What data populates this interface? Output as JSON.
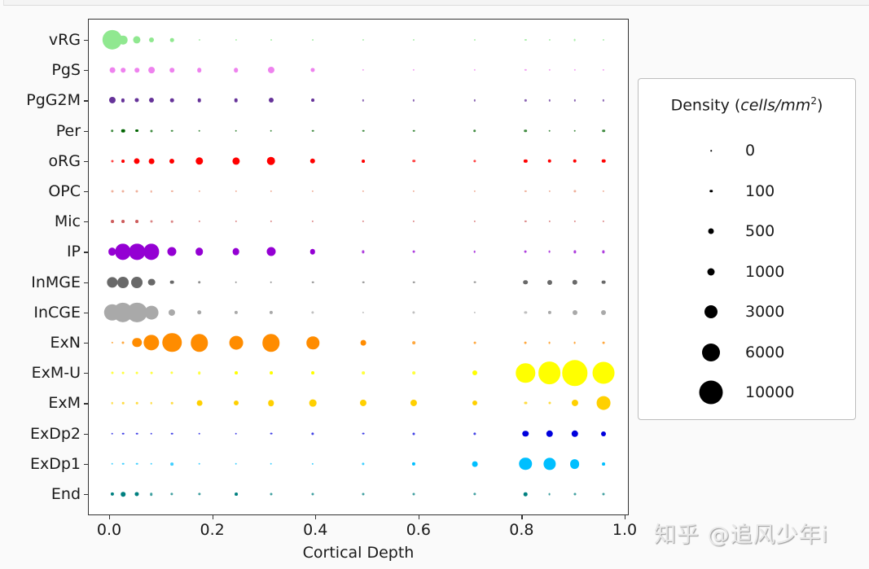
{
  "chart_data": {
    "type": "scatter",
    "subtype": "bubble-dotplot",
    "title": "",
    "xlabel": "Cortical Depth",
    "ylabel": "",
    "xlim": [
      -0.04,
      1.0
    ],
    "xticks": [
      "0.0",
      "0.2",
      "0.4",
      "0.6",
      "0.8",
      "1.0"
    ],
    "grid": false,
    "x": [
      0.006,
      0.027,
      0.054,
      0.082,
      0.122,
      0.175,
      0.246,
      0.314,
      0.395,
      0.493,
      0.591,
      0.709,
      0.808,
      0.854,
      0.903,
      0.959
    ],
    "categories": [
      "vRG",
      "PgS",
      "PgG2M",
      "Per",
      "oRG",
      "OPC",
      "Mic",
      "IP",
      "InMGE",
      "InCGE",
      "ExN",
      "ExM-U",
      "ExM",
      "ExDp2",
      "ExDp1",
      "End"
    ],
    "series": [
      {
        "name": "vRG",
        "color": "#90e890",
        "values": [
          6500,
          1100,
          800,
          300,
          150,
          15,
          15,
          10,
          10,
          15,
          15,
          15,
          15,
          15,
          40,
          15
        ]
      },
      {
        "name": "PgS",
        "color": "#ee82ee",
        "values": [
          400,
          250,
          250,
          550,
          250,
          250,
          250,
          600,
          200,
          20,
          20,
          20,
          20,
          20,
          20,
          20
        ]
      },
      {
        "name": "PgG2M",
        "color": "#663399",
        "values": [
          600,
          120,
          200,
          300,
          150,
          150,
          150,
          300,
          100,
          20,
          20,
          20,
          20,
          20,
          20,
          20
        ]
      },
      {
        "name": "Per",
        "color": "#006400",
        "values": [
          80,
          150,
          100,
          50,
          30,
          30,
          30,
          30,
          30,
          30,
          30,
          80,
          80,
          30,
          30,
          80
        ]
      },
      {
        "name": "oRG",
        "color": "#ff0000",
        "values": [
          50,
          100,
          450,
          400,
          300,
          850,
          800,
          1100,
          350,
          100,
          80,
          60,
          130,
          150,
          150,
          150
        ]
      },
      {
        "name": "OPC",
        "color": "#e9967a",
        "values": [
          50,
          50,
          50,
          30,
          20,
          20,
          20,
          20,
          20,
          20,
          20,
          20,
          20,
          20,
          60,
          20
        ]
      },
      {
        "name": "Mic",
        "color": "#cd5c5c",
        "values": [
          100,
          100,
          100,
          50,
          30,
          20,
          20,
          20,
          20,
          20,
          20,
          20,
          20,
          20,
          20,
          20
        ]
      },
      {
        "name": "IP",
        "color": "#9400d3",
        "values": [
          900,
          4000,
          4000,
          4000,
          1200,
          900,
          700,
          1200,
          350,
          60,
          40,
          30,
          40,
          40,
          60,
          60
        ]
      },
      {
        "name": "InMGE",
        "color": "#696969",
        "values": [
          1800,
          2000,
          2000,
          700,
          160,
          80,
          30,
          30,
          30,
          30,
          30,
          40,
          250,
          300,
          350,
          170
        ]
      },
      {
        "name": "InCGE",
        "color": "#a9a9a9",
        "values": [
          4500,
          6500,
          6500,
          3000,
          600,
          250,
          120,
          120,
          60,
          20,
          60,
          20,
          60,
          120,
          300,
          300
        ]
      },
      {
        "name": "ExN",
        "color": "#ff8c00",
        "values": [
          20,
          50,
          1300,
          4000,
          6000,
          5000,
          3000,
          5000,
          2500,
          400,
          90,
          40,
          40,
          40,
          40,
          40
        ]
      },
      {
        "name": "ExM-U",
        "color": "#ffff00",
        "values": [
          50,
          40,
          40,
          40,
          60,
          80,
          100,
          100,
          100,
          90,
          90,
          300,
          6000,
          8500,
          11000,
          8000
        ]
      },
      {
        "name": "ExM",
        "color": "#ffd000",
        "values": [
          30,
          30,
          30,
          30,
          30,
          400,
          300,
          500,
          700,
          600,
          600,
          300,
          50,
          50,
          600,
          3000
        ]
      },
      {
        "name": "ExDp2",
        "color": "#0000dd",
        "values": [
          30,
          30,
          30,
          30,
          30,
          30,
          30,
          40,
          60,
          40,
          50,
          60,
          500,
          650,
          650,
          300
        ]
      },
      {
        "name": "ExDp1",
        "color": "#00bfff",
        "values": [
          30,
          30,
          30,
          30,
          90,
          30,
          30,
          30,
          20,
          60,
          120,
          400,
          2500,
          2400,
          1400,
          100
        ]
      },
      {
        "name": "End",
        "color": "#008080",
        "values": [
          120,
          250,
          200,
          80,
          60,
          60,
          100,
          50,
          50,
          50,
          50,
          60,
          150,
          40,
          50,
          50
        ]
      }
    ],
    "legend": {
      "title": "Density",
      "title_unit": "cells/mm",
      "title_unit_exp": "2",
      "position": "right",
      "entries": [
        {
          "label": "0",
          "value": 0,
          "size": 1.5
        },
        {
          "label": "100",
          "value": 100,
          "size": 3.5
        },
        {
          "label": "500",
          "value": 500,
          "size": 7
        },
        {
          "label": "1000",
          "value": 1000,
          "size": 9
        },
        {
          "label": "3000",
          "value": 3000,
          "size": 16
        },
        {
          "label": "6000",
          "value": 6000,
          "size": 22
        },
        {
          "label": "10000",
          "value": 10000,
          "size": 29
        }
      ]
    }
  },
  "watermark": "知乎 @追风少年i"
}
